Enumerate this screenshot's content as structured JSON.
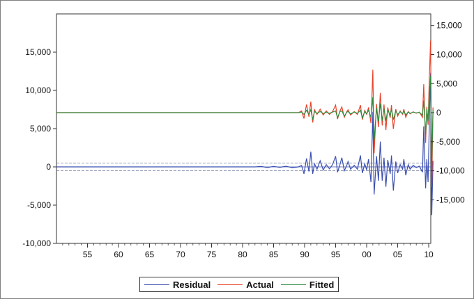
{
  "chart_data": {
    "type": "line",
    "title": "",
    "xlabel": "",
    "x_start": 1950,
    "x_end": 2010,
    "x_tick_labels": [
      "55",
      "60",
      "65",
      "70",
      "75",
      "80",
      "85",
      "90",
      "95",
      "00",
      "05",
      "10"
    ],
    "x_tick_years": [
      1955,
      1960,
      1965,
      1970,
      1975,
      1980,
      1985,
      1990,
      1995,
      2000,
      2005,
      2010
    ],
    "panels": {
      "upper": {
        "y_axis_side": "right",
        "ylim": [
          -22500,
          17000
        ],
        "y_ticks": [
          15000,
          10000,
          5000,
          0,
          -5000,
          -10000,
          -15000
        ],
        "y_tick_labels": [
          "15,000",
          "10,000",
          "5,000",
          "0",
          "-5,000",
          "-10,000",
          "-15,000"
        ]
      },
      "lower": {
        "y_axis_side": "left",
        "ylim": [
          -10000,
          20000
        ],
        "y_ticks": [
          15000,
          10000,
          5000,
          0,
          -5000,
          -10000
        ],
        "y_tick_labels": [
          "15,000",
          "10,000",
          "5,000",
          "0",
          "-5,000",
          "-10,000"
        ],
        "band": [
          -500,
          500
        ]
      }
    },
    "series": [
      {
        "name": "Residual",
        "color": "#3b4fb0",
        "panel": "lower",
        "points": [
          [
            1950,
            0
          ],
          [
            1982,
            0
          ],
          [
            1983,
            50
          ],
          [
            1984,
            -80
          ],
          [
            1985,
            60
          ],
          [
            1986,
            -50
          ],
          [
            1987,
            80
          ],
          [
            1988,
            -100
          ],
          [
            1989,
            0
          ],
          [
            1989.5,
            200
          ],
          [
            1989.9,
            -900
          ],
          [
            1990.3,
            1100
          ],
          [
            1990.7,
            -600
          ],
          [
            1991,
            2000
          ],
          [
            1991.3,
            -900
          ],
          [
            1991.6,
            400
          ],
          [
            1992,
            -300
          ],
          [
            1992.5,
            800
          ],
          [
            1993,
            -400
          ],
          [
            1993.5,
            300
          ],
          [
            1994,
            -250
          ],
          [
            1994.5,
            300
          ],
          [
            1995,
            1400
          ],
          [
            1995.3,
            -700
          ],
          [
            1995.7,
            300
          ],
          [
            1996,
            1200
          ],
          [
            1996.4,
            -500
          ],
          [
            1996.8,
            200
          ],
          [
            1997,
            700
          ],
          [
            1997.4,
            -300
          ],
          [
            1998,
            200
          ],
          [
            1998.5,
            -300
          ],
          [
            1999,
            1500
          ],
          [
            1999.3,
            -800
          ],
          [
            1999.7,
            400
          ],
          [
            2000,
            -400
          ],
          [
            2000.3,
            1000
          ],
          [
            2000.7,
            -2000
          ],
          [
            2001,
            7200
          ],
          [
            2001.2,
            -3600
          ],
          [
            2001.6,
            1400
          ],
          [
            2001.9,
            -1800
          ],
          [
            2002.2,
            3300
          ],
          [
            2002.5,
            -1800
          ],
          [
            2002.8,
            1200
          ],
          [
            2003.1,
            -2600
          ],
          [
            2003.4,
            900
          ],
          [
            2003.8,
            -900
          ],
          [
            2004,
            1500
          ],
          [
            2004.3,
            -3100
          ],
          [
            2004.7,
            700
          ],
          [
            2005,
            -800
          ],
          [
            2005.4,
            300
          ],
          [
            2005.8,
            -300
          ],
          [
            2006,
            1000
          ],
          [
            2006.3,
            -1100
          ],
          [
            2006.7,
            300
          ],
          [
            2007,
            -300
          ],
          [
            2007.5,
            200
          ],
          [
            2008,
            -100
          ],
          [
            2008.5,
            100
          ],
          [
            2009,
            -700
          ],
          [
            2009.2,
            5300
          ],
          [
            2009.5,
            -2800
          ],
          [
            2009.7,
            1000
          ],
          [
            2009.9,
            -2000
          ],
          [
            2010.1,
            5500
          ],
          [
            2010.3,
            12300
          ],
          [
            2010.5,
            -6300
          ],
          [
            2010.7,
            800
          ]
        ]
      },
      {
        "name": "Actual",
        "color": "#e8432b",
        "panel": "upper",
        "points": [
          [
            1950,
            0
          ],
          [
            1988,
            0
          ],
          [
            1989,
            0
          ],
          [
            1989.5,
            300
          ],
          [
            1989.9,
            -1000
          ],
          [
            1990.3,
            1400
          ],
          [
            1990.7,
            -700
          ],
          [
            1991,
            1900
          ],
          [
            1991.3,
            -1700
          ],
          [
            1991.6,
            500
          ],
          [
            1992,
            -300
          ],
          [
            1992.5,
            600
          ],
          [
            1993,
            -400
          ],
          [
            1993.5,
            300
          ],
          [
            1994,
            -300
          ],
          [
            1994.5,
            200
          ],
          [
            1995,
            1300
          ],
          [
            1995.3,
            -1100
          ],
          [
            1995.7,
            300
          ],
          [
            1996,
            1000
          ],
          [
            1996.4,
            -800
          ],
          [
            1996.8,
            200
          ],
          [
            1997,
            500
          ],
          [
            1997.4,
            -400
          ],
          [
            1998,
            200
          ],
          [
            1998.5,
            -300
          ],
          [
            1999,
            1300
          ],
          [
            1999.3,
            -1200
          ],
          [
            1999.7,
            400
          ],
          [
            2000,
            -300
          ],
          [
            2000.3,
            900
          ],
          [
            2000.7,
            -1800
          ],
          [
            2001,
            7400
          ],
          [
            2001.2,
            -7000
          ],
          [
            2001.6,
            1500
          ],
          [
            2001.9,
            -2500
          ],
          [
            2002.2,
            3400
          ],
          [
            2002.5,
            -2200
          ],
          [
            2002.8,
            1400
          ],
          [
            2003.1,
            -3000
          ],
          [
            2003.4,
            900
          ],
          [
            2003.8,
            -900
          ],
          [
            2004,
            1300
          ],
          [
            2004.3,
            -2800
          ],
          [
            2004.7,
            600
          ],
          [
            2005,
            -600
          ],
          [
            2005.4,
            300
          ],
          [
            2005.8,
            -300
          ],
          [
            2006,
            600
          ],
          [
            2006.3,
            -800
          ],
          [
            2006.7,
            200
          ],
          [
            2007,
            -200
          ],
          [
            2007.5,
            150
          ],
          [
            2008,
            -100
          ],
          [
            2008.5,
            100
          ],
          [
            2009,
            -800
          ],
          [
            2009.2,
            4900
          ],
          [
            2009.5,
            -5200
          ],
          [
            2009.7,
            1000
          ],
          [
            2009.9,
            -2100
          ],
          [
            2010.1,
            6000
          ],
          [
            2010.3,
            12400
          ],
          [
            2010.5,
            -12800
          ],
          [
            2010.7,
            900
          ]
        ]
      },
      {
        "name": "Fitted",
        "color": "#2e8b3e",
        "panel": "upper",
        "points": [
          [
            1950,
            0
          ],
          [
            1989,
            0
          ],
          [
            1989.5,
            100
          ],
          [
            1989.9,
            -300
          ],
          [
            1990.3,
            400
          ],
          [
            1990.7,
            -300
          ],
          [
            1991,
            500
          ],
          [
            1991.3,
            -1200
          ],
          [
            1991.6,
            200
          ],
          [
            1992,
            -100
          ],
          [
            1992.5,
            200
          ],
          [
            1993,
            -150
          ],
          [
            1993.5,
            100
          ],
          [
            1994,
            -100
          ],
          [
            1994.5,
            100
          ],
          [
            1995,
            300
          ],
          [
            1995.3,
            -900
          ],
          [
            1995.7,
            200
          ],
          [
            1996,
            300
          ],
          [
            1996.4,
            -600
          ],
          [
            1996.8,
            100
          ],
          [
            1997,
            200
          ],
          [
            1997.4,
            -200
          ],
          [
            1998,
            100
          ],
          [
            1998.5,
            -100
          ],
          [
            1999,
            400
          ],
          [
            1999.3,
            -900
          ],
          [
            1999.7,
            200
          ],
          [
            2000,
            -200
          ],
          [
            2000.3,
            400
          ],
          [
            2000.7,
            -800
          ],
          [
            2001,
            2700
          ],
          [
            2001.2,
            -4800
          ],
          [
            2001.6,
            800
          ],
          [
            2001.9,
            -1500
          ],
          [
            2002.2,
            1600
          ],
          [
            2002.5,
            -1400
          ],
          [
            2002.8,
            700
          ],
          [
            2003.1,
            -1400
          ],
          [
            2003.4,
            500
          ],
          [
            2003.8,
            -500
          ],
          [
            2004,
            700
          ],
          [
            2004.3,
            -1200
          ],
          [
            2004.7,
            300
          ],
          [
            2005,
            -300
          ],
          [
            2005.4,
            150
          ],
          [
            2005.8,
            -150
          ],
          [
            2006,
            300
          ],
          [
            2006.3,
            -400
          ],
          [
            2006.7,
            100
          ],
          [
            2007,
            -100
          ],
          [
            2007.5,
            100
          ],
          [
            2008,
            -50
          ],
          [
            2008.5,
            50
          ],
          [
            2009,
            -400
          ],
          [
            2009.2,
            2100
          ],
          [
            2009.5,
            -3800
          ],
          [
            2009.7,
            600
          ],
          [
            2009.9,
            -1400
          ],
          [
            2010.1,
            3200
          ],
          [
            2010.3,
            6300
          ],
          [
            2010.5,
            -8600
          ],
          [
            2010.7,
            500
          ]
        ]
      }
    ],
    "legend": {
      "position": "bottom",
      "entries": [
        "Residual",
        "Actual",
        "Fitted"
      ]
    },
    "grid": false
  }
}
